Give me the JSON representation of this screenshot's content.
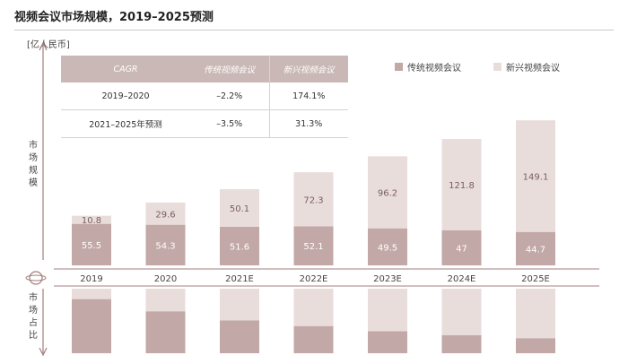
{
  "title": "视频会议市场规模，2019–2025预测",
  "unit": "[亿人民币]",
  "axis_label_top": [
    "市",
    "场",
    "规",
    "模"
  ],
  "axis_label_bottom": [
    "市",
    "场",
    "占",
    "比"
  ],
  "cagr_table": {
    "header": [
      "CAGR",
      "传统视频会议",
      "新兴视频会议"
    ],
    "rows": [
      [
        "2019–2020",
        "–2.2%",
        "174.1%"
      ],
      [
        "2021–2025年预测",
        "–3.5%",
        "31.3%"
      ]
    ]
  },
  "colors": {
    "traditional": "#c2a8a6",
    "emerging": "#e9dddc",
    "line": "#a27f7c"
  },
  "chart_data": {
    "type": "bar",
    "stacked": true,
    "categories": [
      "2019",
      "2020",
      "2021E",
      "2022E",
      "2023E",
      "2024E",
      "2025E"
    ],
    "series": [
      {
        "name": "传统视频会议",
        "values": [
          55.5,
          54.3,
          51.6,
          52.1,
          49.5,
          47.0,
          44.7
        ]
      },
      {
        "name": "新兴视频会议",
        "values": [
          10.8,
          29.6,
          50.1,
          72.3,
          96.2,
          121.8,
          149.1
        ]
      }
    ],
    "legend": "top-right",
    "share_panel": true
  }
}
